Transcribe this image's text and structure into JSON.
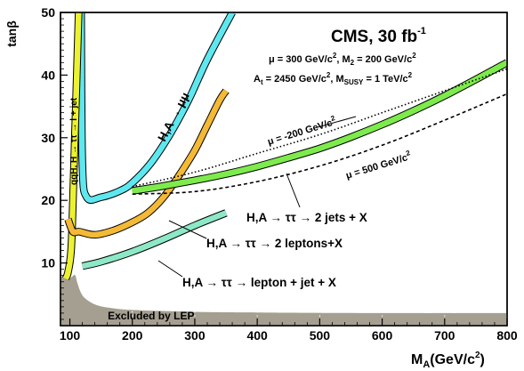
{
  "chart_data": {
    "type": "line",
    "title": "CMS, 30 fb",
    "title_sup": "-1",
    "xlabel": "M",
    "xlabel_sub": "A",
    "xlabel_unit": "(GeV/c",
    "xlabel_unit_sup": "2",
    "xlabel_unit_close": ")",
    "ylabel": "tan",
    "ylabel_greek": "β",
    "x_scale": "linear",
    "xlim": [
      85,
      800
    ],
    "ylim": [
      0,
      50
    ],
    "xticks": [
      100,
      200,
      300,
      400,
      500,
      600,
      700,
      800
    ],
    "yticks": [
      10,
      20,
      30,
      40,
      50
    ],
    "grid": "dotted vertical lines in excluded band",
    "params": {
      "line1": {
        "a": "μ = 300 GeV/c",
        "sup1": "2",
        "b": ", M",
        "sub": "2",
        "c": " = 200 GeV/c",
        "sup2": "2"
      },
      "line2": {
        "a": "A",
        "sub1": "t",
        "b": " = 2450 GeV/c",
        "sup1": "2",
        "c": ", M",
        "sub2": "SUSY",
        "d": " = 1 TeV/c",
        "sup2": "2"
      }
    },
    "excluded_label": "Excluded by LEP",
    "excluded_boundary": {
      "x": [
        85,
        100,
        108,
        112,
        118,
        125,
        140,
        160,
        200,
        300,
        400,
        600,
        800
      ],
      "y": [
        7.8,
        7.6,
        8.1,
        6.8,
        5.2,
        4.3,
        3.4,
        2.9,
        2.5,
        2.2,
        2.1,
        2.0,
        2.0
      ]
    },
    "series": [
      {
        "id": "mumu",
        "color": "#5de8f0",
        "label": {
          "a": "H,A",
          "arrow": " → ",
          "b": "μμ"
        },
        "x": [
          118,
          120,
          127,
          150,
          180,
          200,
          230,
          260,
          290,
          320,
          360
        ],
        "y": [
          50,
          26,
          20.5,
          20.5,
          21.5,
          22.8,
          26,
          30.5,
          36,
          42.5,
          50
        ]
      },
      {
        "id": "qqh",
        "color": "#ecf231",
        "label": {
          "a": "qqH, H",
          "arrow": " → ",
          "b": "ττ",
          "arrow2": " → ",
          "c": "l + jet"
        },
        "x": [
          93,
          97,
          102,
          105,
          108,
          111,
          114
        ],
        "y": [
          7.5,
          8.5,
          12,
          20,
          30,
          40,
          50
        ]
      },
      {
        "id": "two_leptons",
        "color": "#f4b935",
        "label": {
          "a": "H,A",
          "arrow": " → ",
          "b": "ττ",
          "arrow2": " → ",
          "c": "2 leptons+X"
        },
        "x": [
          97,
          105,
          115,
          140,
          170,
          200,
          225,
          250,
          275,
          300,
          320,
          340,
          350
        ],
        "y": [
          17,
          15,
          15,
          14.5,
          15.2,
          16.5,
          18,
          20.5,
          24,
          28,
          32,
          36,
          37.5
        ]
      },
      {
        "id": "lep_jet",
        "color": "#8de8c6",
        "label": {
          "a": "H,A",
          "arrow": " → ",
          "b": "ττ",
          "arrow2": " → ",
          "c": "lepton + jet + X"
        },
        "x": [
          120,
          150,
          200,
          250,
          300,
          350
        ],
        "y": [
          9.5,
          10.2,
          11.8,
          13.8,
          16,
          18
        ]
      },
      {
        "id": "two_jets",
        "color": "#7deb4c",
        "label": {
          "a": "H,A",
          "arrow": " → ",
          "b": "ττ",
          "arrow2": " → ",
          "c": "2 jets + X"
        },
        "x": [
          200,
          250,
          300,
          350,
          400,
          450,
          500,
          550,
          600,
          650,
          700,
          750,
          800
        ],
        "y": [
          21.5,
          22.3,
          23.2,
          24.2,
          25.4,
          26.8,
          28.3,
          30.1,
          32.1,
          34.3,
          36.7,
          39.3,
          42
        ]
      },
      {
        "id": "mu_m200",
        "color": "#000000",
        "dash": "dotted",
        "label": {
          "a": "μ = -200 GeV/c",
          "sup": "2"
        },
        "x": [
          200,
          300,
          400,
          500,
          600,
          700,
          800
        ],
        "y": [
          22.2,
          24.5,
          27.5,
          30.5,
          34,
          37.5,
          41
        ]
      },
      {
        "id": "mu_500",
        "color": "#000000",
        "dash": "dashed",
        "label": {
          "a": "μ = 500 GeV/c",
          "sup": "2"
        },
        "x": [
          200,
          300,
          400,
          500,
          600,
          700,
          800
        ],
        "y": [
          21,
          21.4,
          23,
          25.5,
          28.8,
          32.8,
          37
        ]
      }
    ]
  }
}
